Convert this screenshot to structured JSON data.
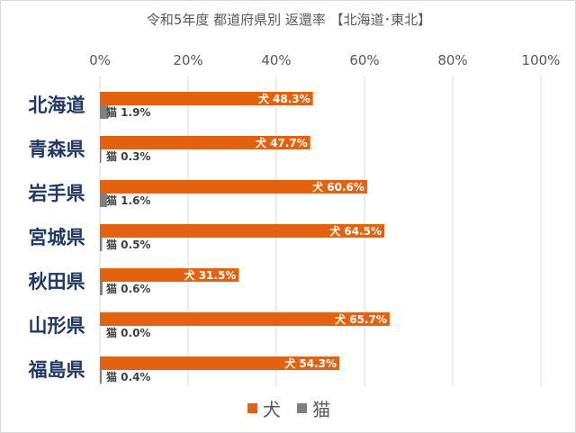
{
  "chart_data": {
    "type": "bar",
    "orientation": "horizontal",
    "title": "令和5年度 都道府県別 返還率 【北海道･東北】",
    "categories": [
      "北海道",
      "青森県",
      "岩手県",
      "宮城県",
      "秋田県",
      "山形県",
      "福島県"
    ],
    "series": [
      {
        "name": "犬",
        "color": "#e2620f",
        "values": [
          48.3,
          47.7,
          60.6,
          64.5,
          31.5,
          65.7,
          54.3
        ]
      },
      {
        "name": "猫",
        "color": "#808080",
        "values": [
          1.9,
          0.3,
          1.6,
          0.5,
          0.6,
          0.0,
          0.4
        ]
      }
    ],
    "data_labels": {
      "犬": [
        "犬 48.3%",
        "犬 47.7%",
        "犬 60.6%",
        "犬 64.5%",
        "犬 31.5%",
        "犬 65.7%",
        "犬 54.3%"
      ],
      "猫": [
        "猫 1.9%",
        "猫 0.3%",
        "猫 1.6%",
        "猫 0.5%",
        "猫 0.6%",
        "猫 0.0%",
        "猫 0.4%"
      ]
    },
    "xlim": [
      0,
      100
    ],
    "x_ticks": [
      "0%",
      "20%",
      "40%",
      "60%",
      "80%",
      "100%"
    ],
    "x_axis_position": "top",
    "grid": true,
    "legend_position": "bottom"
  }
}
